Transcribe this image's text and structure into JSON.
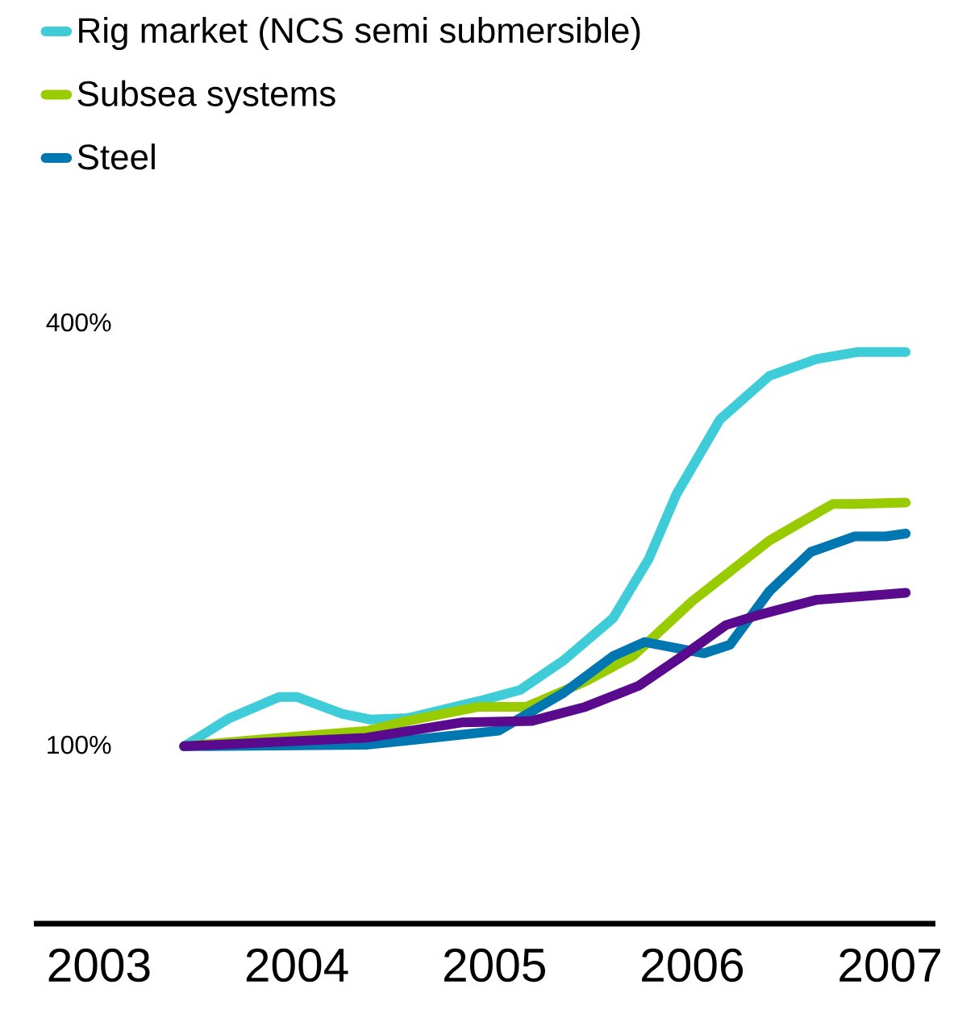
{
  "chart_data": {
    "type": "line",
    "xlim": [
      2002.67,
      2007.23
    ],
    "ylim": [
      -27,
      400
    ],
    "xticks": [
      2003,
      2004,
      2005,
      2006,
      2007
    ],
    "yticks": [
      {
        "value": 100,
        "label": "100%"
      },
      {
        "value": 400,
        "label": "400%"
      }
    ],
    "legend": "top left",
    "grid": false,
    "series": [
      {
        "name": "Rig market (NCS semi submersible)",
        "color": "#3ecdd8",
        "x": [
          2003.43,
          2003.66,
          2003.91,
          2004.0,
          2004.23,
          2004.37,
          2004.56,
          2004.92,
          2005.13,
          2005.35,
          2005.6,
          2005.78,
          2005.92,
          2006.14,
          2006.39,
          2006.63,
          2006.84,
          2007.08
        ],
        "values": [
          99,
          119,
          134,
          134,
          122,
          118,
          119,
          131,
          139,
          160,
          190,
          232,
          278,
          331,
          362,
          374,
          379,
          379
        ]
      },
      {
        "name": "Subsea systems",
        "color": "#99cc00",
        "x": [
          2003.43,
          2003.91,
          2004.36,
          2004.56,
          2004.92,
          2005.16,
          2005.46,
          2005.7,
          2006.0,
          2006.39,
          2006.71,
          2006.82,
          2007.08
        ],
        "values": [
          99,
          105,
          110,
          117,
          127,
          127,
          145,
          163,
          202,
          245,
          271,
          271,
          272
        ]
      },
      {
        "name": "Steel",
        "color": "#0077b0",
        "x": [
          2003.43,
          2004.35,
          2005.02,
          2005.35,
          2005.6,
          2005.76,
          2006.06,
          2006.19,
          2006.39,
          2006.6,
          2006.82,
          2006.98,
          2007.08
        ],
        "values": [
          99,
          100,
          110,
          137,
          163,
          173,
          165,
          171,
          209,
          237,
          248,
          248,
          250
        ]
      },
      {
        "color": "#5a0a8c",
        "x": [
          2003.43,
          2004.35,
          2004.84,
          2005.19,
          2005.46,
          2005.73,
          2005.95,
          2006.17,
          2006.33,
          2006.63,
          2007.08
        ],
        "values": [
          99,
          105,
          116,
          117,
          127,
          142,
          163,
          185,
          192,
          203,
          208
        ]
      }
    ]
  }
}
